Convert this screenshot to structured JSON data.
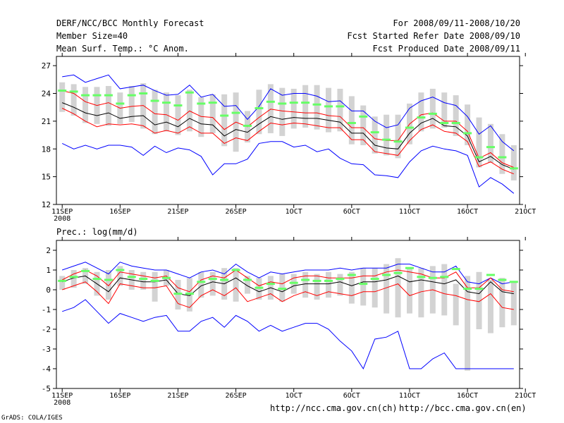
{
  "header": {
    "title": "DERF/NCC/BCC Monthly Forecast",
    "member_size": "Member Size=40",
    "variable": "Mean Surf. Temp.: °C Anom.",
    "period": "For 2008/09/11-2008/10/20",
    "refer_date": "Fcst Started Refer Date 2008/09/10",
    "produced_date": "Fcst Produced Date 2008/09/11"
  },
  "footer": {
    "url_ncc": "http://ncc.cma.gov.cn(ch)",
    "url_bcc": "http://bcc.cma.gov.cn(en)",
    "credit": "GrADS: COLA/IGES"
  },
  "colors": {
    "background": "#ffffff",
    "frame": "#000000",
    "ensemble_bar": "#d3d3d3",
    "mean_line": "#000000",
    "spread_lines": "#ff0000",
    "extreme_lines": "#0000ff",
    "member_mark": "#66ff66"
  },
  "chart_data": [
    {
      "type": "line",
      "name": "temperature",
      "title": "Mean Surf. Temp.: °C Anom.",
      "ylim": [
        12,
        28
      ],
      "yticks": [
        12,
        15,
        18,
        21,
        24,
        27
      ],
      "ytick_labels": [
        "12",
        "15",
        "18",
        "21",
        "24",
        "27"
      ],
      "xlim": [
        -0.5,
        39.5
      ],
      "xticks": [
        0,
        5,
        10,
        15,
        20,
        25,
        30,
        35,
        40
      ],
      "xtick_labels": [
        "11SEP",
        "16SEP",
        "21SEP",
        "26SEP",
        "1OCT",
        "6OCT",
        "11OCT",
        "16OCT",
        "21OCT"
      ],
      "year_label": "2008",
      "bar_low": [
        22.0,
        21.6,
        20.8,
        20.7,
        20.5,
        20.7,
        20.9,
        20.2,
        19.6,
        19.9,
        19.5,
        19.9,
        19.3,
        19.7,
        18.3,
        17.7,
        18.7,
        19.6,
        19.7,
        19.4,
        20.2,
        20.3,
        20.1,
        19.8,
        19.9,
        18.5,
        18.4,
        17.5,
        17.3,
        17.0,
        18.5,
        19.9,
        20.2,
        20.3,
        19.4,
        18.4,
        16.0,
        16.5,
        15.3,
        14.6
      ],
      "bar_high": [
        25.2,
        25.0,
        24.7,
        24.7,
        24.8,
        24.1,
        24.8,
        25.1,
        24.4,
        24.1,
        23.8,
        24.4,
        23.6,
        23.9,
        23.9,
        24.1,
        22.1,
        24.4,
        25.0,
        24.6,
        24.5,
        24.9,
        24.9,
        24.6,
        24.5,
        23.7,
        22.7,
        21.5,
        21.7,
        21.7,
        22.9,
        24.1,
        24.5,
        24.1,
        23.8,
        22.8,
        21.4,
        20.7,
        19.6,
        18.4
      ],
      "member": [
        24.3,
        24.2,
        23.8,
        23.8,
        23.8,
        22.9,
        23.8,
        24.0,
        23.2,
        23.0,
        22.7,
        24.1,
        22.9,
        23.0,
        21.6,
        21.9,
        20.5,
        22.4,
        23.1,
        22.9,
        23.0,
        23.0,
        22.8,
        22.6,
        22.6,
        20.8,
        21.5,
        19.8,
        19.0,
        18.8,
        20.3,
        21.4,
        21.8,
        20.8,
        20.8,
        19.7,
        17.1,
        18.2,
        17.1,
        15.9
      ],
      "series": [
        {
          "name": "max",
          "color": "#0000ff",
          "values": [
            25.8,
            26.0,
            25.2,
            25.6,
            26.0,
            24.5,
            24.7,
            24.9,
            24.3,
            23.8,
            23.9,
            24.9,
            23.6,
            23.9,
            22.6,
            22.7,
            21.2,
            22.6,
            24.5,
            23.8,
            24.0,
            24.0,
            23.7,
            23.1,
            23.2,
            22.1,
            22.1,
            21.0,
            20.3,
            20.6,
            22.4,
            23.2,
            23.6,
            23.0,
            22.7,
            21.5,
            19.6,
            20.5,
            18.8,
            17.8
          ]
        },
        {
          "name": "upper",
          "color": "#ff0000",
          "values": [
            24.3,
            24.0,
            23.1,
            22.7,
            23.0,
            22.4,
            22.6,
            22.7,
            21.8,
            21.7,
            21.1,
            22.1,
            21.5,
            21.4,
            20.1,
            20.9,
            20.4,
            21.4,
            22.3,
            22.1,
            22.0,
            21.9,
            21.9,
            21.6,
            21.5,
            20.3,
            20.3,
            19.1,
            18.9,
            18.9,
            20.7,
            21.7,
            21.9,
            21.0,
            21.0,
            19.9,
            17.0,
            17.6,
            16.5,
            16.0
          ]
        },
        {
          "name": "mean",
          "color": "#000000",
          "values": [
            23.0,
            22.5,
            21.9,
            21.6,
            21.9,
            21.3,
            21.5,
            21.6,
            20.6,
            20.9,
            20.4,
            21.3,
            20.7,
            20.6,
            19.4,
            20.1,
            19.8,
            20.7,
            21.5,
            21.2,
            21.4,
            21.3,
            21.3,
            21.1,
            20.9,
            19.7,
            19.7,
            18.4,
            18.1,
            18.0,
            19.7,
            20.8,
            21.3,
            20.5,
            20.4,
            19.4,
            16.6,
            17.2,
            16.3,
            15.8
          ]
        },
        {
          "name": "lower",
          "color": "#ff0000",
          "values": [
            22.4,
            21.8,
            21.0,
            20.4,
            20.7,
            20.6,
            20.7,
            20.5,
            19.7,
            20.0,
            19.7,
            20.4,
            19.7,
            19.7,
            18.6,
            19.2,
            18.9,
            19.9,
            20.8,
            20.6,
            20.8,
            20.7,
            20.5,
            20.3,
            20.3,
            19.0,
            19.0,
            17.7,
            17.5,
            17.3,
            18.9,
            20.1,
            20.6,
            19.9,
            19.7,
            18.8,
            16.1,
            16.6,
            15.8,
            15.3
          ]
        },
        {
          "name": "min",
          "color": "#0000ff",
          "values": [
            18.6,
            18.0,
            18.4,
            18.0,
            18.4,
            18.4,
            18.2,
            17.3,
            18.3,
            17.6,
            18.1,
            17.9,
            17.2,
            15.2,
            16.4,
            16.4,
            16.9,
            18.6,
            18.8,
            18.8,
            18.2,
            18.4,
            17.7,
            18.0,
            17.0,
            16.4,
            16.3,
            15.2,
            15.1,
            14.9,
            16.6,
            17.8,
            18.3,
            18.0,
            17.8,
            17.3,
            13.9,
            14.9,
            14.2,
            13.2
          ]
        }
      ]
    },
    {
      "type": "line",
      "name": "precipitation",
      "title": "Prec.: log(mm/d)",
      "ylim": [
        -5,
        2.5
      ],
      "yticks": [
        -5,
        -4,
        -3,
        -2,
        -1,
        0,
        1,
        2
      ],
      "ytick_labels": [
        "-5",
        "-4",
        "-3",
        "-2",
        "-1",
        "0",
        "1",
        "2"
      ],
      "xlim": [
        -0.5,
        39.5
      ],
      "xticks": [
        0,
        5,
        10,
        15,
        20,
        25,
        30,
        35,
        40
      ],
      "xtick_labels": [
        "11SEP",
        "16SEP",
        "21SEP",
        "26SEP",
        "1OCT",
        "6OCT",
        "11OCT",
        "16OCT",
        "21OCT"
      ],
      "year_label": "2008",
      "bar_low": [
        0.0,
        0.1,
        0.3,
        -0.3,
        -0.5,
        0.2,
        0.0,
        0.0,
        -0.6,
        0.2,
        -1.0,
        -1.1,
        -0.4,
        -0.3,
        -0.5,
        -0.6,
        -0.2,
        -0.5,
        -0.5,
        -0.6,
        -0.2,
        -0.4,
        -0.5,
        -0.4,
        -0.3,
        -0.7,
        -0.8,
        -0.9,
        -1.2,
        -1.4,
        -1.2,
        -1.4,
        -1.2,
        -1.3,
        -1.8,
        -4.1,
        -2.0,
        -2.2,
        -1.9,
        -1.8
      ],
      "bar_high": [
        0.7,
        1.0,
        1.1,
        0.9,
        1.0,
        1.2,
        1.0,
        0.9,
        0.9,
        1.0,
        0.5,
        0.6,
        0.9,
        0.9,
        1.1,
        1.1,
        0.7,
        0.6,
        0.7,
        0.8,
        0.8,
        0.9,
        0.8,
        0.9,
        0.8,
        0.9,
        1.1,
        1.1,
        1.3,
        1.6,
        1.1,
        1.1,
        1.2,
        1.3,
        0.3,
        0.7,
        0.9,
        0.5,
        0.6,
        0.4
      ],
      "member": [
        0.45,
        0.65,
        0.95,
        0.55,
        0.5,
        1.0,
        0.65,
        0.55,
        0.45,
        0.6,
        -0.2,
        -0.2,
        0.4,
        0.55,
        0.5,
        1.0,
        0.5,
        0.1,
        0.3,
        0.05,
        0.35,
        0.5,
        0.45,
        0.45,
        0.55,
        0.75,
        0.3,
        0.55,
        0.75,
        0.85,
        1.1,
        0.65,
        0.6,
        0.65,
        1.05,
        0.05,
        0.05,
        0.75,
        0.5,
        0.4
      ],
      "series": [
        {
          "name": "max",
          "color": "#0000ff",
          "values": [
            1.0,
            1.2,
            1.4,
            1.1,
            0.8,
            1.4,
            1.2,
            1.1,
            1.0,
            1.0,
            0.8,
            0.6,
            0.9,
            1.0,
            0.8,
            1.3,
            0.9,
            0.6,
            0.9,
            0.8,
            0.9,
            1.0,
            1.0,
            1.0,
            1.1,
            1.0,
            1.1,
            1.1,
            1.1,
            1.3,
            1.3,
            1.1,
            0.9,
            0.9,
            1.2,
            0.4,
            0.3,
            0.6,
            0.3,
            0.4
          ]
        },
        {
          "name": "upper",
          "color": "#ff0000",
          "values": [
            0.5,
            0.8,
            1.0,
            0.7,
            0.2,
            0.9,
            0.8,
            0.7,
            0.6,
            0.7,
            0.1,
            -0.1,
            0.5,
            0.7,
            0.6,
            1.0,
            0.6,
            0.2,
            0.4,
            0.3,
            0.6,
            0.7,
            0.7,
            0.6,
            0.6,
            0.6,
            0.7,
            0.7,
            0.9,
            1.0,
            0.9,
            0.8,
            0.6,
            0.6,
            0.9,
            0.1,
            0.1,
            0.6,
            0.0,
            -0.1
          ]
        },
        {
          "name": "mean",
          "color": "#000000",
          "values": [
            0.4,
            0.6,
            0.7,
            0.3,
            -0.1,
            0.6,
            0.5,
            0.4,
            0.4,
            0.5,
            -0.2,
            -0.3,
            0.2,
            0.4,
            0.3,
            0.6,
            0.2,
            -0.1,
            0.1,
            -0.1,
            0.2,
            0.3,
            0.3,
            0.3,
            0.4,
            0.2,
            0.4,
            0.4,
            0.5,
            0.7,
            0.4,
            0.5,
            0.4,
            0.3,
            0.5,
            -0.1,
            -0.2,
            0.4,
            -0.1,
            -0.2
          ]
        },
        {
          "name": "lower",
          "color": "#ff0000",
          "values": [
            0.0,
            0.2,
            0.4,
            -0.1,
            -0.7,
            0.3,
            0.2,
            0.1,
            0.1,
            0.2,
            -0.7,
            -0.9,
            -0.3,
            0.0,
            -0.3,
            0.1,
            -0.6,
            -0.4,
            -0.2,
            -0.6,
            -0.3,
            -0.1,
            -0.3,
            -0.1,
            -0.2,
            -0.3,
            -0.1,
            -0.1,
            0.1,
            0.3,
            -0.3,
            -0.1,
            0.0,
            -0.2,
            -0.3,
            -0.5,
            -0.6,
            -0.2,
            -0.9,
            -1.0
          ]
        },
        {
          "name": "min",
          "color": "#0000ff",
          "values": [
            -1.1,
            -0.9,
            -0.5,
            -1.1,
            -1.7,
            -1.2,
            -1.4,
            -1.6,
            -1.4,
            -1.3,
            -2.1,
            -2.1,
            -1.6,
            -1.4,
            -1.9,
            -1.3,
            -1.6,
            -2.1,
            -1.8,
            -2.1,
            -1.9,
            -1.7,
            -1.7,
            -2.0,
            -2.6,
            -3.1,
            -4.0,
            -2.5,
            -2.4,
            -2.1,
            -4.0,
            -4.0,
            -3.5,
            -3.2,
            -4.0,
            -4.0,
            -4.0,
            -4.0,
            -4.0,
            -4.0
          ]
        }
      ]
    }
  ]
}
